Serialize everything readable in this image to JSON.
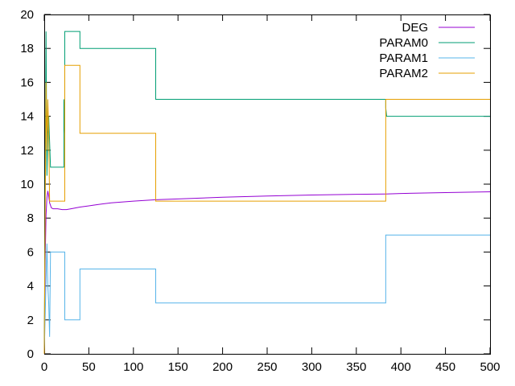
{
  "chart_data": {
    "type": "line",
    "title": "",
    "xlabel": "",
    "ylabel": "",
    "xlim": [
      0,
      500
    ],
    "ylim": [
      0,
      20
    ],
    "xticks": [
      0,
      50,
      100,
      150,
      200,
      250,
      300,
      350,
      400,
      450,
      500
    ],
    "yticks": [
      0,
      2,
      4,
      6,
      8,
      10,
      12,
      14,
      16,
      18,
      20
    ],
    "grid": false,
    "legend_position": "top-right",
    "series": [
      {
        "name": "DEG",
        "color": "#9400d3",
        "step": false,
        "points": [
          [
            0,
            0
          ],
          [
            1,
            5.5
          ],
          [
            2,
            8.2
          ],
          [
            3,
            9.2
          ],
          [
            4,
            9.6
          ],
          [
            5,
            9.3
          ],
          [
            6,
            8.9
          ],
          [
            8,
            8.6
          ],
          [
            10,
            8.55
          ],
          [
            15,
            8.55
          ],
          [
            20,
            8.5
          ],
          [
            25,
            8.5
          ],
          [
            30,
            8.55
          ],
          [
            40,
            8.65
          ],
          [
            50,
            8.72
          ],
          [
            60,
            8.8
          ],
          [
            75,
            8.9
          ],
          [
            100,
            9.0
          ],
          [
            125,
            9.08
          ],
          [
            150,
            9.13
          ],
          [
            200,
            9.23
          ],
          [
            250,
            9.3
          ],
          [
            300,
            9.36
          ],
          [
            350,
            9.4
          ],
          [
            383,
            9.42
          ],
          [
            400,
            9.45
          ],
          [
            450,
            9.5
          ],
          [
            500,
            9.55
          ]
        ]
      },
      {
        "name": "PARAM0",
        "color": "#009e73",
        "step": true,
        "points": [
          [
            0,
            0
          ],
          [
            2,
            19
          ],
          [
            3,
            10.5
          ],
          [
            4,
            13
          ],
          [
            5,
            14
          ],
          [
            6,
            12.5
          ],
          [
            7,
            11
          ],
          [
            8,
            11
          ],
          [
            22,
            11
          ],
          [
            22,
            15
          ],
          [
            23,
            13
          ],
          [
            23,
            19
          ],
          [
            40,
            19
          ],
          [
            40,
            18
          ],
          [
            125,
            18
          ],
          [
            125,
            15
          ],
          [
            383,
            15
          ],
          [
            383,
            14.5
          ],
          [
            384,
            14
          ],
          [
            500,
            14
          ]
        ]
      },
      {
        "name": "PARAM1",
        "color": "#56b4e9",
        "step": true,
        "points": [
          [
            0,
            0
          ],
          [
            3,
            6.5
          ],
          [
            4,
            4
          ],
          [
            5,
            3
          ],
          [
            6,
            1
          ],
          [
            7,
            6
          ],
          [
            8,
            6
          ],
          [
            23,
            6
          ],
          [
            23,
            2
          ],
          [
            40,
            2
          ],
          [
            40,
            5
          ],
          [
            125,
            5
          ],
          [
            125,
            3
          ],
          [
            383,
            3
          ],
          [
            383,
            7
          ],
          [
            500,
            7
          ]
        ]
      },
      {
        "name": "PARAM2",
        "color": "#e69f00",
        "step": true,
        "points": [
          [
            0,
            0
          ],
          [
            2,
            16
          ],
          [
            3,
            12
          ],
          [
            4,
            15
          ],
          [
            5,
            13
          ],
          [
            6,
            9
          ],
          [
            7,
            9
          ],
          [
            23,
            9
          ],
          [
            23,
            17
          ],
          [
            40,
            17
          ],
          [
            40,
            13
          ],
          [
            125,
            13
          ],
          [
            125,
            9
          ],
          [
            383,
            9
          ],
          [
            383,
            15
          ],
          [
            500,
            15
          ]
        ]
      }
    ]
  }
}
